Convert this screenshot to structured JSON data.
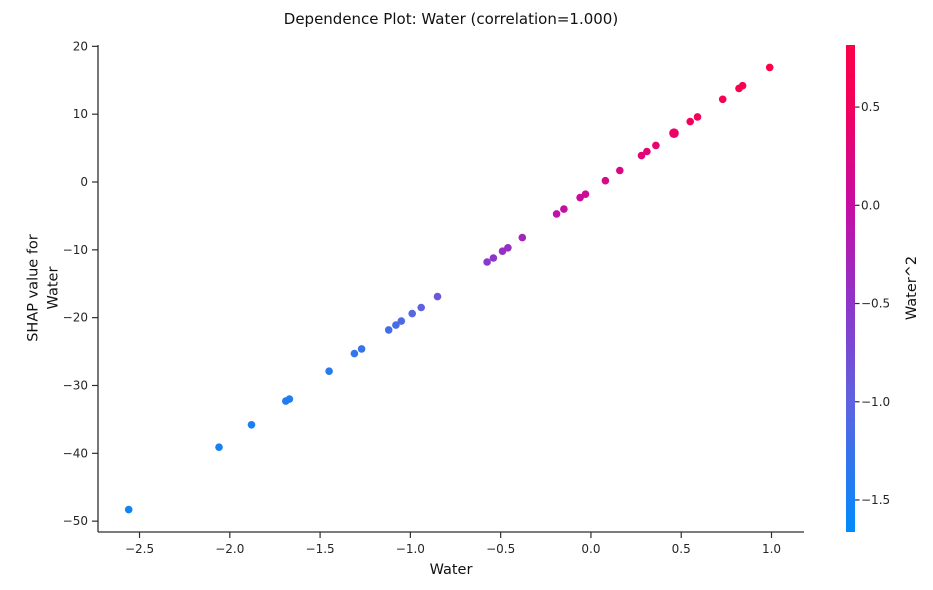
{
  "figure": {
    "background": "#ffffff",
    "text_color": "#111111",
    "axis_color": "#2e2e2e"
  },
  "chart_data": {
    "type": "scatter",
    "title": "Dependence Plot: Water (correlation=1.000)",
    "xlabel": "Water",
    "ylabel_lines": [
      "SHAP value for",
      "Water"
    ],
    "xlim": [
      -2.73,
      1.18
    ],
    "ylim": [
      -51.6,
      20.2
    ],
    "x_ticks": [
      -2.5,
      -2.0,
      -1.5,
      -1.0,
      -0.5,
      0.0,
      0.5,
      1.0
    ],
    "y_ticks": [
      20,
      10,
      0,
      -10,
      -20,
      -30,
      -40,
      -50
    ],
    "grid": false,
    "legend": "colorbar-right",
    "points": [
      {
        "water": -2.56,
        "shap": -48.3,
        "water2": -1.556
      },
      {
        "water": -2.06,
        "shap": -39.1,
        "water2": -1.5
      },
      {
        "water": -1.88,
        "shap": -35.8,
        "water2": -1.47
      },
      {
        "water": -1.69,
        "shap": -32.3,
        "water2": -1.43
      },
      {
        "water": -1.67,
        "shap": -32.0,
        "water2": -1.43
      },
      {
        "water": -1.45,
        "shap": -27.9,
        "water2": -1.38
      },
      {
        "water": -1.31,
        "shap": -25.3,
        "water2": -1.31
      },
      {
        "water": -1.27,
        "shap": -24.6,
        "water2": -1.29
      },
      {
        "water": -1.12,
        "shap": -21.8,
        "water2": -1.19
      },
      {
        "water": -1.08,
        "shap": -21.1,
        "water2": -1.15
      },
      {
        "water": -1.05,
        "shap": -20.5,
        "water2": -1.12
      },
      {
        "water": -0.99,
        "shap": -19.4,
        "water2": -1.06
      },
      {
        "water": -0.94,
        "shap": -18.5,
        "water2": -0.99
      },
      {
        "water": -0.85,
        "shap": -16.9,
        "water2": -0.87
      },
      {
        "water": -0.575,
        "shap": -11.8,
        "water2": -0.54
      },
      {
        "water": -0.54,
        "shap": -11.2,
        "water2": -0.5
      },
      {
        "water": -0.49,
        "shap": -10.2,
        "water2": -0.44
      },
      {
        "water": -0.46,
        "shap": -9.7,
        "water2": -0.41
      },
      {
        "water": -0.38,
        "shap": -8.2,
        "water2": -0.31
      },
      {
        "water": -0.19,
        "shap": -4.7,
        "water2": -0.06
      },
      {
        "water": -0.15,
        "shap": -4.0,
        "water2": -0.02
      },
      {
        "water": -0.06,
        "shap": -2.3,
        "water2": 0.06
      },
      {
        "water": -0.03,
        "shap": -1.8,
        "water2": 0.09
      },
      {
        "water": 0.08,
        "shap": 0.2,
        "water2": 0.18
      },
      {
        "water": 0.16,
        "shap": 1.7,
        "water2": 0.24
      },
      {
        "water": 0.28,
        "shap": 3.9,
        "water2": 0.31
      },
      {
        "water": 0.31,
        "shap": 4.5,
        "water2": 0.33
      },
      {
        "water": 0.36,
        "shap": 5.4,
        "water2": 0.37
      },
      {
        "water": 0.46,
        "shap": 7.2,
        "water2": 0.43,
        "r": 4.8
      },
      {
        "water": 0.55,
        "shap": 8.9,
        "water2": 0.5
      },
      {
        "water": 0.59,
        "shap": 9.6,
        "water2": 0.53
      },
      {
        "water": 0.73,
        "shap": 12.2,
        "water2": 0.63
      },
      {
        "water": 0.82,
        "shap": 13.8,
        "water2": 0.7
      },
      {
        "water": 0.84,
        "shap": 14.2,
        "water2": 0.71
      },
      {
        "water": 0.99,
        "shap": 16.9,
        "water2": 0.816
      }
    ],
    "colorbar": {
      "label": "Water^2",
      "vmin": -1.663,
      "vmax": 0.816,
      "ticks": [
        0.5,
        0.0,
        -0.5,
        -1.0,
        -1.5
      ],
      "colormap_stops": [
        {
          "v": -1.663,
          "color": "#008BFB"
        },
        {
          "v": -1.0,
          "color": "#5E63DF"
        },
        {
          "v": -0.5,
          "color": "#8E35C9"
        },
        {
          "v": 0.0,
          "color": "#C60DA3"
        },
        {
          "v": 0.5,
          "color": "#F2015C"
        },
        {
          "v": 0.816,
          "color": "#FB0148"
        }
      ]
    }
  }
}
